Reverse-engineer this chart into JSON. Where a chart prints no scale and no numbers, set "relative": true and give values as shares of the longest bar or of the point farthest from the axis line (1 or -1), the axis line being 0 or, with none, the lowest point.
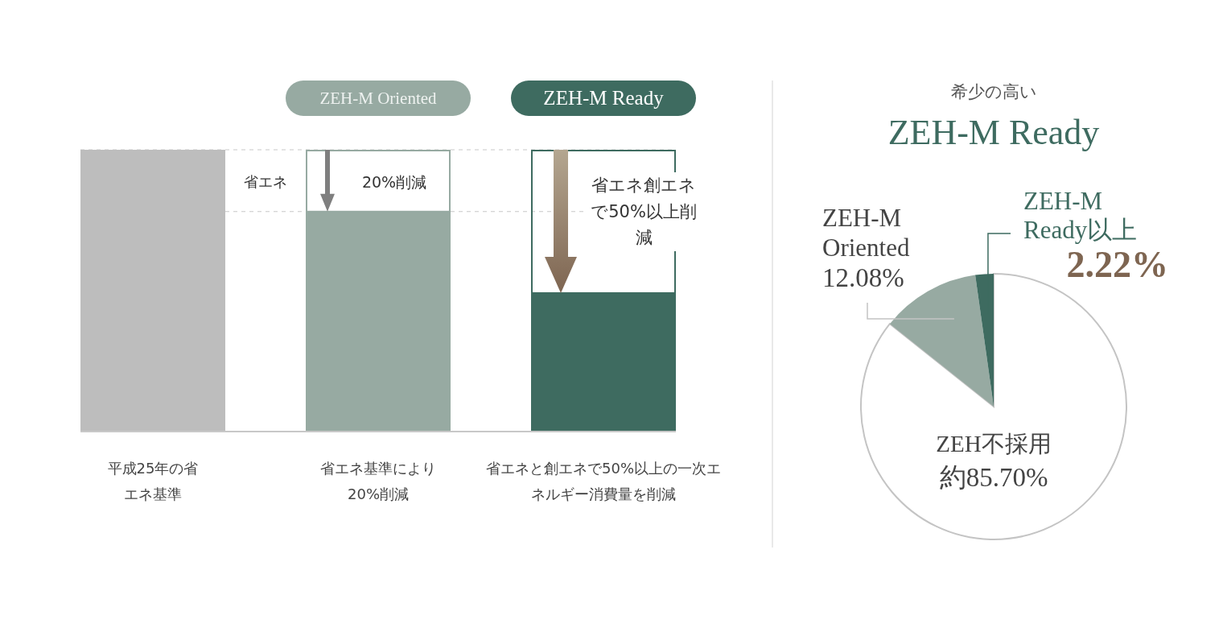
{
  "chart_data": [
    {
      "type": "bar",
      "relative": true,
      "categories": [
        "平成25年の省エネ基準",
        "省エネ基準により20%削減",
        "省エネと創エネで50%以上の一次エネルギー消費量を削減"
      ],
      "values": [
        1,
        0.78,
        0.49
      ],
      "colors": [
        "#bdbdbd",
        "#97aaa2",
        "#3e6b60"
      ],
      "ref_lines": [
        {
          "axis": "y",
          "value": 1,
          "color": "#c8c8c8",
          "line_style": "dashed"
        },
        {
          "axis": "y",
          "value": 0.78,
          "color": "#c8c8c8",
          "line_style": "dashed"
        }
      ],
      "annotations": [
        "ZEH-M Oriented",
        "ZEH-M Ready",
        "省エネ",
        "20%削減",
        "省エネ創エネで50%以上削減"
      ]
    },
    {
      "type": "pie",
      "subtitle": "希少の高い",
      "title": "ZEH-M Ready",
      "categories": [
        "ZEH不採用",
        "ZEH-M\nOriented",
        "ZEH-M\nReady以上"
      ],
      "values": [
        85.7,
        12.08,
        2.22
      ],
      "colors": [
        "#ffffff",
        "#97aaa2",
        "#3e6b60"
      ],
      "value_labels": [
        "約85.70%",
        "12.08%",
        "2.22%"
      ]
    }
  ]
}
